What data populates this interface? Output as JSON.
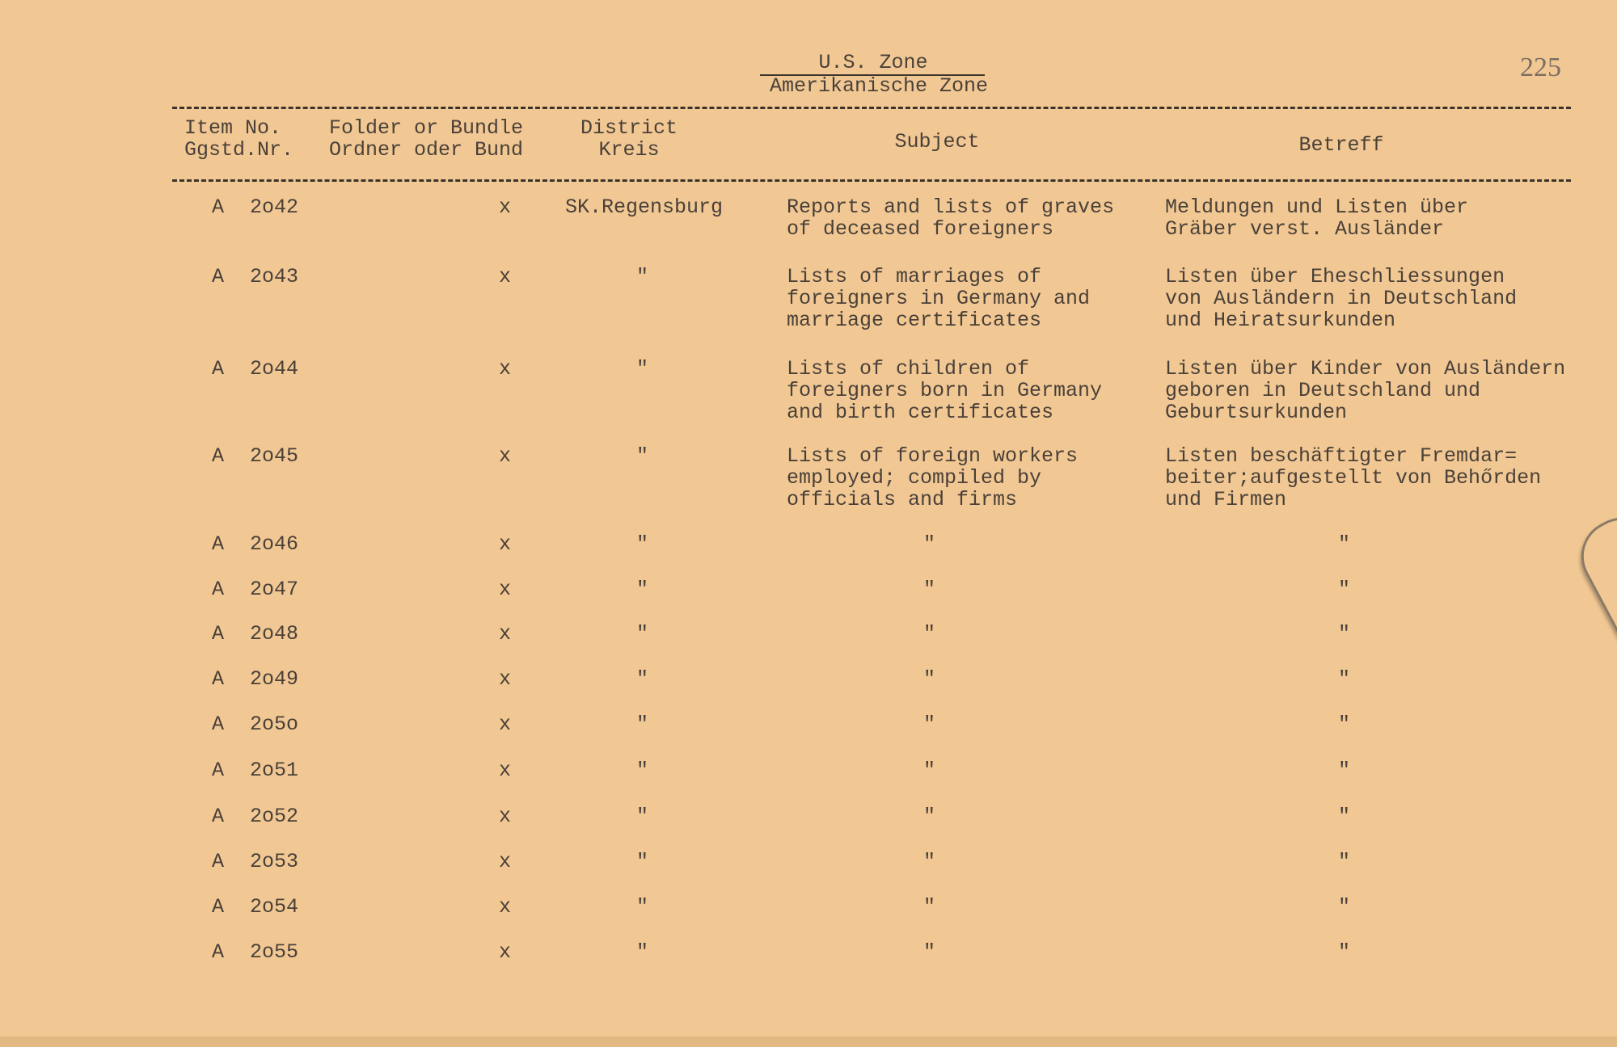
{
  "header": {
    "zone_en": "U.S. Zone",
    "zone_de": "Amerikanische Zone",
    "page_number": "225"
  },
  "columns": {
    "item": [
      "Item No.",
      "Ggstd.Nr."
    ],
    "folder": [
      "Folder or Bundle",
      "Ordner oder Bund"
    ],
    "district": [
      "District",
      "Kreis"
    ],
    "subject": "Subject",
    "betreff": "Betreff"
  },
  "rows": [
    {
      "prefix": "A",
      "number": "2o42",
      "mark": "x",
      "district": "SK.Regensburg",
      "subject": "Reports and lists of graves\nof deceased foreigners",
      "betreff": "Meldungen und Listen über\nGräber verst. Ausländer"
    },
    {
      "prefix": "A",
      "number": "2o43",
      "mark": "x",
      "district": "\"",
      "subject": "Lists of marriages of\nforeigners in Germany and\nmarriage certificates",
      "betreff": "Listen über Eheschliessungen\nvon Ausländern in Deutschland\nund Heiratsurkunden"
    },
    {
      "prefix": "A",
      "number": "2o44",
      "mark": "x",
      "district": "\"",
      "subject": "Lists of children of\nforeigners born in Germany\nand birth certificates",
      "betreff": "Listen über Kinder von Ausländern\ngeboren in Deutschland und\nGeburtsurkunden"
    },
    {
      "prefix": "A",
      "number": "2o45",
      "mark": "x",
      "district": "\"",
      "subject": "Lists of foreign workers\nemployed; compiled by\nofficials and firms",
      "betreff": "Listen beschäftigter Fremdar=\nbeiter;aufgestellt von Behőrden\nund Firmen"
    },
    {
      "prefix": "A",
      "number": "2o46",
      "mark": "x",
      "district": "\"",
      "subject": "\"",
      "betreff": "\""
    },
    {
      "prefix": "A",
      "number": "2o47",
      "mark": "x",
      "district": "\"",
      "subject": "\"",
      "betreff": "\""
    },
    {
      "prefix": "A",
      "number": "2o48",
      "mark": "x",
      "district": "\"",
      "subject": "\"",
      "betreff": "\""
    },
    {
      "prefix": "A",
      "number": "2o49",
      "mark": "x",
      "district": "\"",
      "subject": "\"",
      "betreff": "\""
    },
    {
      "prefix": "A",
      "number": "2o5o",
      "mark": "x",
      "district": "\"",
      "subject": "\"",
      "betreff": "\""
    },
    {
      "prefix": "A",
      "number": "2o51",
      "mark": "x",
      "district": "\"",
      "subject": "\"",
      "betreff": "\""
    },
    {
      "prefix": "A",
      "number": "2o52",
      "mark": "x",
      "district": "\"",
      "subject": "\"",
      "betreff": "\""
    },
    {
      "prefix": "A",
      "number": "2o53",
      "mark": "x",
      "district": "\"",
      "subject": "\"",
      "betreff": "\""
    },
    {
      "prefix": "A",
      "number": "2o54",
      "mark": "x",
      "district": "\"",
      "subject": "\"",
      "betreff": "\""
    },
    {
      "prefix": "A",
      "number": "2o55",
      "mark": "x",
      "district": "\"",
      "subject": "\"",
      "betreff": "\""
    }
  ]
}
